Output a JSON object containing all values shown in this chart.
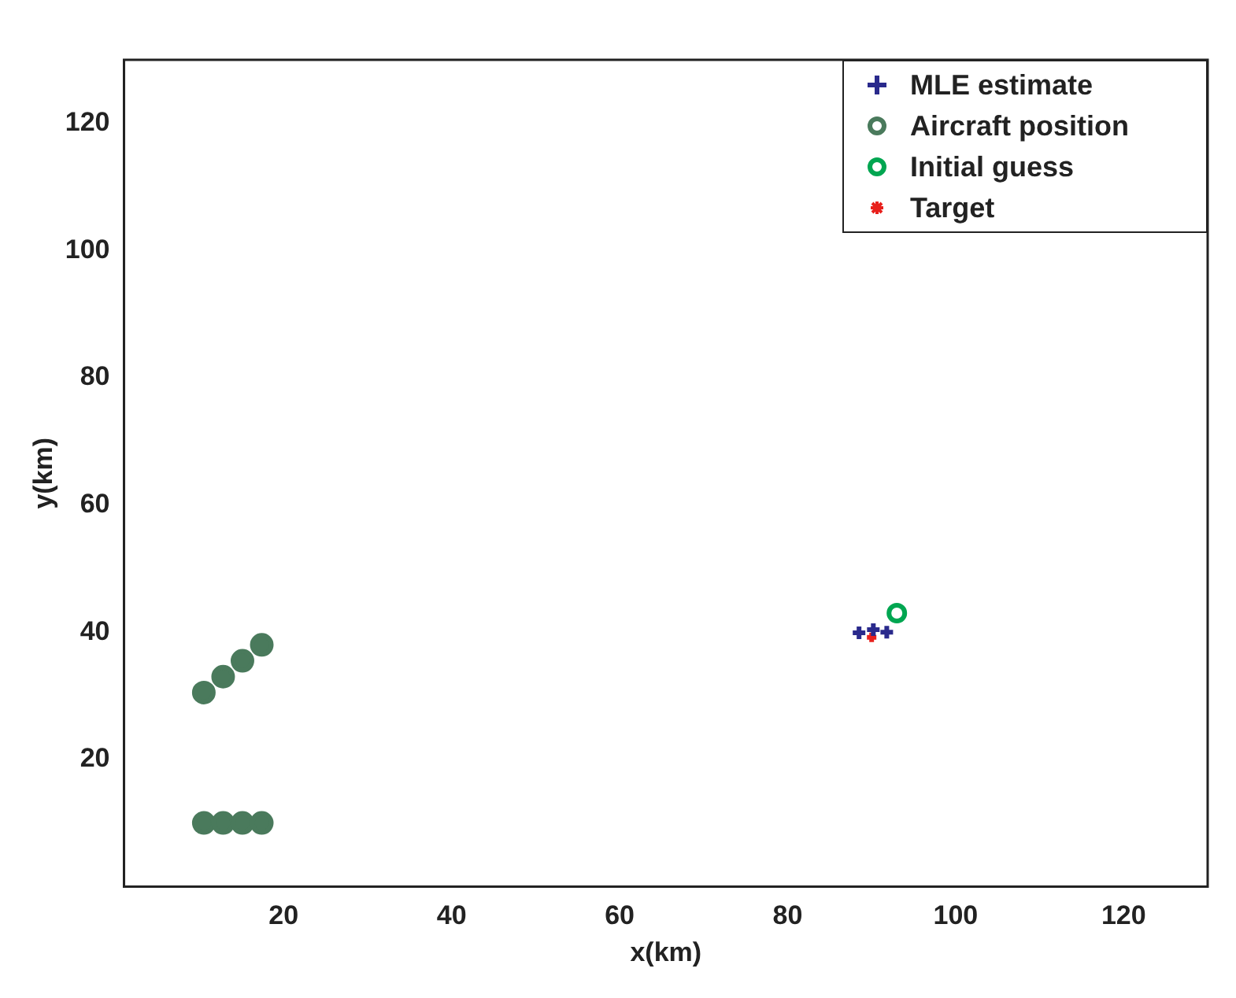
{
  "chart_data": {
    "type": "scatter",
    "xlabel": "x(km)",
    "ylabel": "y(km)",
    "xlim": [
      1,
      130
    ],
    "ylim": [
      0,
      130
    ],
    "xticks": [
      20,
      40,
      60,
      80,
      100,
      120
    ],
    "yticks": [
      20,
      40,
      60,
      80,
      100,
      120
    ],
    "grid": false,
    "legend": "top right",
    "series": [
      {
        "name": "MLE estimate",
        "color": "#2a2a8c",
        "marker": "cross",
        "x": [
          88.5,
          90.2,
          91.8
        ],
        "values": [
          39.9,
          40.4,
          40
        ]
      },
      {
        "name": "Aircraft position",
        "color": "#4a7a5c",
        "marker": "circle",
        "x": [
          10.5,
          12.8,
          15.1,
          17.4,
          10.5,
          12.8,
          15.1,
          17.4
        ],
        "values": [
          10,
          10,
          10,
          10,
          30.5,
          33,
          35.5,
          38
        ]
      },
      {
        "name": "Initial guess",
        "color": "#00a651",
        "marker": "circle",
        "x": [
          93
        ],
        "values": [
          43
        ]
      },
      {
        "name": "Target",
        "color": "#e8201c",
        "marker": "cross",
        "x": [
          90
        ],
        "values": [
          39.2
        ]
      }
    ]
  }
}
